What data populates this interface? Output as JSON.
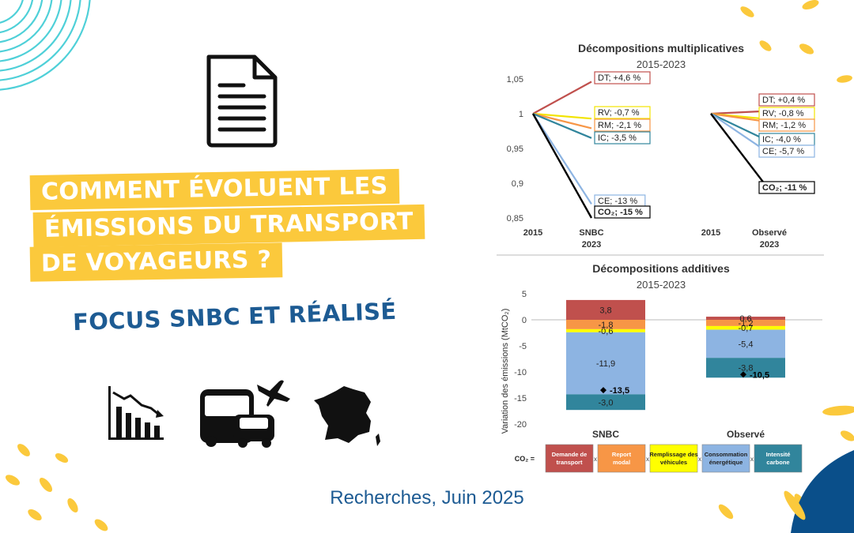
{
  "title_lines": [
    "COMMENT ÉVOLUENT LES",
    "ÉMISSIONS DU TRANSPORT",
    "DE VOYAGEURS ?"
  ],
  "subtitle": "FOCUS SNBC ET RÉALISÉ",
  "footer": "Recherches, Juin 2025",
  "icons": [
    "document-icon",
    "declining-bar-chart-icon",
    "bus-car-plane-icon",
    "france-map-icon"
  ],
  "colors": {
    "accent": "#fbc93c",
    "brand_blue": "#1d5b93",
    "deco_cyan": "#4fd0d8",
    "deco_navy": "#0a4f8a"
  },
  "chart_data": [
    {
      "type": "line",
      "title": "Décompositions multiplicatives",
      "subtitle": "2015-2023",
      "ylim": [
        0.85,
        1.05
      ],
      "yticks": [
        "1,05",
        "1",
        "0,95",
        "0,9",
        "0,85"
      ],
      "groups": [
        {
          "start_label": "2015",
          "end_label": [
            "SNBC",
            "2023"
          ]
        },
        {
          "start_label": "2015",
          "end_label": [
            "Observé",
            "2023"
          ]
        }
      ],
      "series": [
        {
          "name": "DT",
          "color": "#c0504d",
          "labels": [
            "DT; +4,6 %",
            "DT; +0,4 %"
          ],
          "values": [
            1.046,
            1.004
          ]
        },
        {
          "name": "RV",
          "color": "#f2e400",
          "labels": [
            "RV; -0,7 %",
            "RV; -0,8 %"
          ],
          "values": [
            0.993,
            0.992
          ]
        },
        {
          "name": "RM",
          "color": "#f79646",
          "labels": [
            "RM; -2,1 %",
            "RM; -1,2 %"
          ],
          "values": [
            0.979,
            0.988
          ]
        },
        {
          "name": "IC",
          "color": "#31859c",
          "labels": [
            "IC; -3,5 %",
            "IC; -4,0 %"
          ],
          "values": [
            0.965,
            0.96
          ]
        },
        {
          "name": "CE",
          "color": "#8db4e2",
          "labels": [
            "CE; -13 %",
            "CE; -5,7 %"
          ],
          "values": [
            0.87,
            0.943
          ]
        },
        {
          "name": "CO2",
          "color": "#000000",
          "labels": [
            "CO₂; -15 %",
            "CO₂; -11 %"
          ],
          "values": [
            0.85,
            0.89
          ]
        }
      ]
    },
    {
      "type": "bar",
      "stacked": true,
      "title": "Décompositions additives",
      "subtitle": "2015-2023",
      "ylabel": "Variation des émissions (MtCO₂)",
      "ylim": [
        -20,
        5
      ],
      "yticks": [
        "5",
        "0",
        "-5",
        "-10",
        "-15",
        "-20"
      ],
      "categories": [
        "SNBC",
        "Observé"
      ],
      "series": [
        {
          "name": "Demande de transport",
          "color": "#c0504d",
          "values": [
            3.8,
            0.6
          ],
          "labels": [
            "3,8",
            "0,6"
          ]
        },
        {
          "name": "Report modal",
          "color": "#f79646",
          "values": [
            -1.8,
            -1.2
          ],
          "labels": [
            "-1,8",
            "-1,2"
          ]
        },
        {
          "name": "Remplissage des véhicules",
          "color": "#ffff00",
          "values": [
            -0.6,
            -0.7
          ],
          "labels": [
            "-0,6",
            "-0,7"
          ]
        },
        {
          "name": "Consommation énergétique",
          "color": "#8db4e2",
          "values": [
            -11.9,
            -5.4
          ],
          "labels": [
            "-11,9",
            "-5,4"
          ]
        },
        {
          "name": "Intensité carbone",
          "color": "#31859c",
          "values": [
            -3.0,
            -3.8
          ],
          "labels": [
            "-3,0",
            "-3,8"
          ]
        }
      ],
      "totals": {
        "values": [
          -13.5,
          -10.5
        ],
        "labels": [
          "-13,5",
          "-10,5"
        ]
      },
      "legend": {
        "prefix": "CO₂ =",
        "separator": "x",
        "placement": "bottom"
      }
    }
  ]
}
